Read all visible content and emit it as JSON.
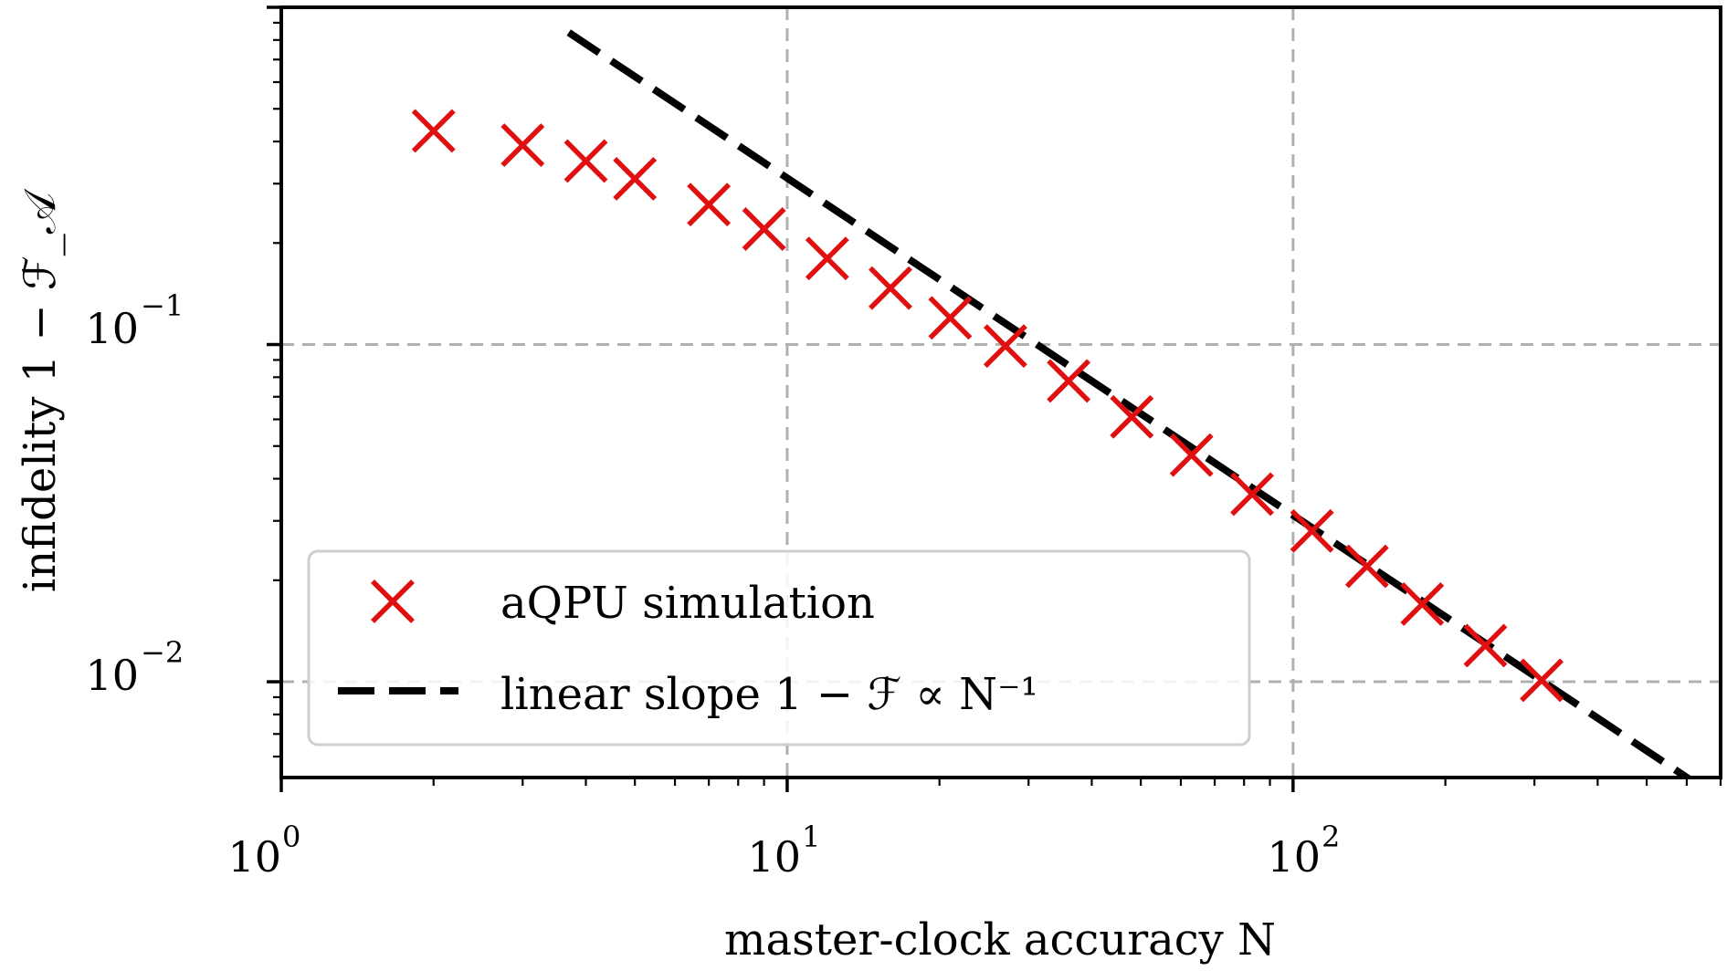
{
  "chart_data": {
    "type": "scatter",
    "xlabel": "master-clock accuracy N",
    "ylabel": "infidelity 1 − ℱ_𝒜",
    "x_scale": "log",
    "y_scale": "log",
    "xlim": [
      1,
      700
    ],
    "ylim": [
      0.0052,
      1.0
    ],
    "grid": true,
    "legend_position": "lower-left",
    "x_ticks": [
      {
        "base": "10",
        "exp": "0",
        "value": 1
      },
      {
        "base": "10",
        "exp": "1",
        "value": 10
      },
      {
        "base": "10",
        "exp": "2",
        "value": 100
      }
    ],
    "y_ticks": [
      {
        "base": "10",
        "exp": "−2",
        "value": 0.01
      },
      {
        "base": "10",
        "exp": "−1",
        "value": 0.1
      }
    ],
    "series": [
      {
        "name": "aQPU simulation",
        "marker": "x",
        "color": "#e01010",
        "x": [
          2,
          3,
          4,
          5,
          7,
          9,
          12,
          16,
          21,
          27,
          36,
          48,
          63,
          83,
          109,
          140,
          180,
          240,
          310
        ],
        "y": [
          0.43,
          0.39,
          0.35,
          0.31,
          0.26,
          0.22,
          0.18,
          0.147,
          0.12,
          0.099,
          0.078,
          0.061,
          0.047,
          0.036,
          0.028,
          0.022,
          0.017,
          0.0128,
          0.0101
        ]
      },
      {
        "name": "linear slope 1 − ℱ ∝ N⁻¹",
        "line_style": "dashed",
        "color": "#000000",
        "x": [
          3.7,
          700
        ],
        "y": [
          0.842,
          0.00446
        ]
      }
    ]
  }
}
